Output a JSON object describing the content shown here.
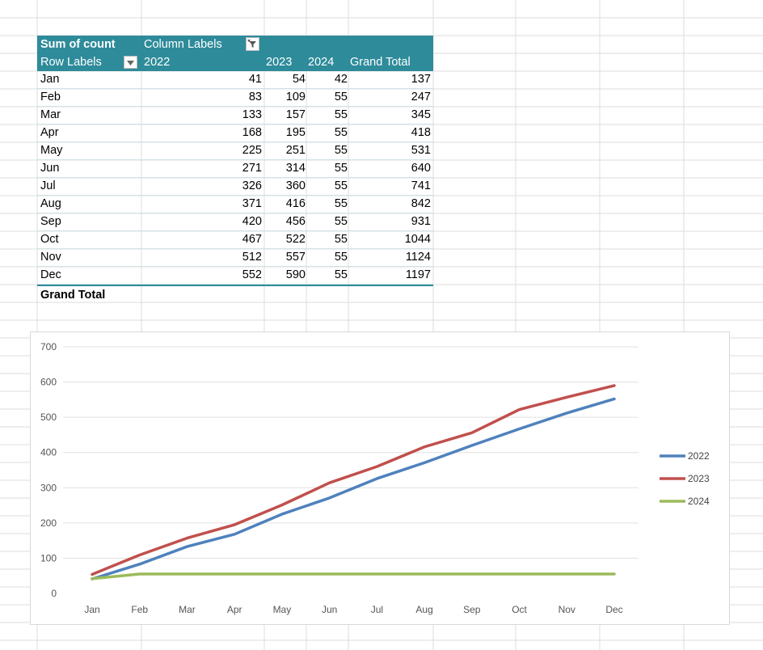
{
  "pivot": {
    "value_field": "Sum of count",
    "column_labels": "Column Labels",
    "row_labels": "Row Labels",
    "col_2022": "2022",
    "col_2023": "2023",
    "col_2024": "2024",
    "col_total": "Grand Total",
    "grand_total_label": "Grand Total",
    "rows": [
      {
        "m": "Jan",
        "a": "41",
        "b": "54",
        "c": "42",
        "t": "137"
      },
      {
        "m": "Feb",
        "a": "83",
        "b": "109",
        "c": "55",
        "t": "247"
      },
      {
        "m": "Mar",
        "a": "133",
        "b": "157",
        "c": "55",
        "t": "345"
      },
      {
        "m": "Apr",
        "a": "168",
        "b": "195",
        "c": "55",
        "t": "418"
      },
      {
        "m": "May",
        "a": "225",
        "b": "251",
        "c": "55",
        "t": "531"
      },
      {
        "m": "Jun",
        "a": "271",
        "b": "314",
        "c": "55",
        "t": "640"
      },
      {
        "m": "Jul",
        "a": "326",
        "b": "360",
        "c": "55",
        "t": "741"
      },
      {
        "m": "Aug",
        "a": "371",
        "b": "416",
        "c": "55",
        "t": "842"
      },
      {
        "m": "Sep",
        "a": "420",
        "b": "456",
        "c": "55",
        "t": "931"
      },
      {
        "m": "Oct",
        "a": "467",
        "b": "522",
        "c": "55",
        "t": "1044"
      },
      {
        "m": "Nov",
        "a": "512",
        "b": "557",
        "c": "55",
        "t": "1124"
      },
      {
        "m": "Dec",
        "a": "552",
        "b": "590",
        "c": "55",
        "t": "1197"
      }
    ],
    "header_color": "#2e8b9a"
  },
  "chart_data": {
    "type": "line",
    "categories": [
      "Jan",
      "Feb",
      "Mar",
      "Apr",
      "May",
      "Jun",
      "Jul",
      "Aug",
      "Sep",
      "Oct",
      "Nov",
      "Dec"
    ],
    "series": [
      {
        "name": "2022",
        "color": "#4f81bd",
        "values": [
          41,
          83,
          133,
          168,
          225,
          271,
          326,
          371,
          420,
          467,
          512,
          552
        ]
      },
      {
        "name": "2023",
        "color": "#c0504d",
        "values": [
          54,
          109,
          157,
          195,
          251,
          314,
          360,
          416,
          456,
          522,
          557,
          590
        ]
      },
      {
        "name": "2024",
        "color": "#9bbb59",
        "values": [
          42,
          55,
          55,
          55,
          55,
          55,
          55,
          55,
          55,
          55,
          55,
          55
        ]
      }
    ],
    "yticks": [
      0,
      100,
      200,
      300,
      400,
      500,
      600,
      700
    ],
    "ylim": [
      0,
      700
    ],
    "legend": "right",
    "grid": true
  }
}
